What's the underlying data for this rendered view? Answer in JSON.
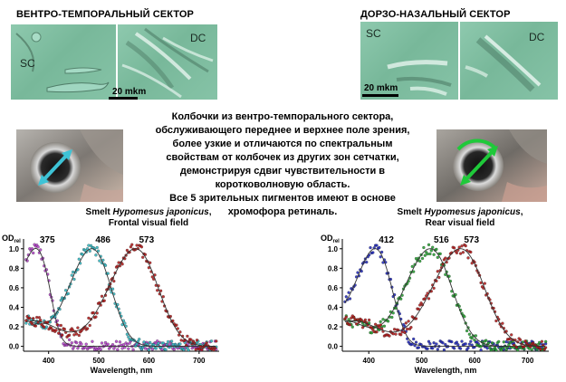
{
  "sections": {
    "left_title": "ВЕНТРО-ТЕМПОРАЛЬНЫЙ СЕКТОР",
    "right_title": "ДОРЗО-НАЗАЛЬНЫЙ СЕКТОР"
  },
  "micrographs": {
    "left_a_label": "SC",
    "left_b_label": "DC",
    "left_scale": "20 mkm",
    "right_a_label": "SC",
    "right_b_label": "DC",
    "right_scale": "20 mkm"
  },
  "caption": {
    "lines": [
      "Колбочки из вентро-темпорального сектора,",
      "обслуживающего переднее и верхнее поле зрения,",
      "более узкие и отличаются по спектральным",
      "свойствам от колбочек из других зон сетчатки,",
      "демонстрируя сдвиг чувствительности в",
      "коротковолновую область.",
      "Все 5 зрительных пигментов имеют в основе",
      "хромофора ретиналь."
    ]
  },
  "fish": {
    "left_arrow_color": "#3ec3d6",
    "right_arrow_color": "#1fc93a"
  },
  "plot_titles": {
    "left_line1_prefix": "Smelt ",
    "left_line1_species": "Hypomesus japonicus",
    "left_line1_suffix": ",",
    "left_line2": "Frontal visual field",
    "right_line1_prefix": "Smelt ",
    "right_line1_species": "Hypomesus japonicus",
    "right_line1_suffix": ",",
    "right_line2": "Rear visual field"
  },
  "chart_data": [
    {
      "type": "scatter",
      "title": "Smelt Hypomesus japonicus, Frontal visual field",
      "ylabel_main": "OD",
      "ylabel_sub": "rel",
      "xlabel": "Wavelength, nm",
      "xlim": [
        350,
        740
      ],
      "ylim": [
        -0.05,
        1.1
      ],
      "x_ticks": [
        400,
        500,
        600,
        700
      ],
      "y_ticks": [
        0.0,
        0.2,
        0.4,
        0.6,
        0.8,
        1.0
      ],
      "y_tick_labels": [
        "0.0",
        "0.2",
        "0.4",
        "0.6",
        "0.8",
        "1.0"
      ],
      "series": [
        {
          "peak": 375,
          "label": "375",
          "color": "#b23cc8"
        },
        {
          "peak": 486,
          "label": "486",
          "color": "#2bb5c0"
        },
        {
          "peak": 573,
          "label": "573",
          "color": "#b01515"
        }
      ]
    },
    {
      "type": "scatter",
      "title": "Smelt Hypomesus japonicus, Rear visual field",
      "ylabel_main": "OD",
      "ylabel_sub": "rel",
      "xlabel": "Wavelength, nm",
      "xlim": [
        350,
        740
      ],
      "ylim": [
        -0.05,
        1.1
      ],
      "x_ticks": [
        400,
        500,
        600,
        700
      ],
      "y_ticks": [
        0.0,
        0.2,
        0.4,
        0.6,
        0.8,
        1.0
      ],
      "y_tick_labels": [
        "0.0",
        "0.2",
        "0.4",
        "0.6",
        "0.8",
        "1.0"
      ],
      "series": [
        {
          "peak": 412,
          "label": "412",
          "color": "#1a22b8"
        },
        {
          "peak": 516,
          "label": "516",
          "color": "#1f9e2a"
        },
        {
          "peak": 573,
          "label": "573",
          "color": "#b01515"
        }
      ]
    }
  ]
}
